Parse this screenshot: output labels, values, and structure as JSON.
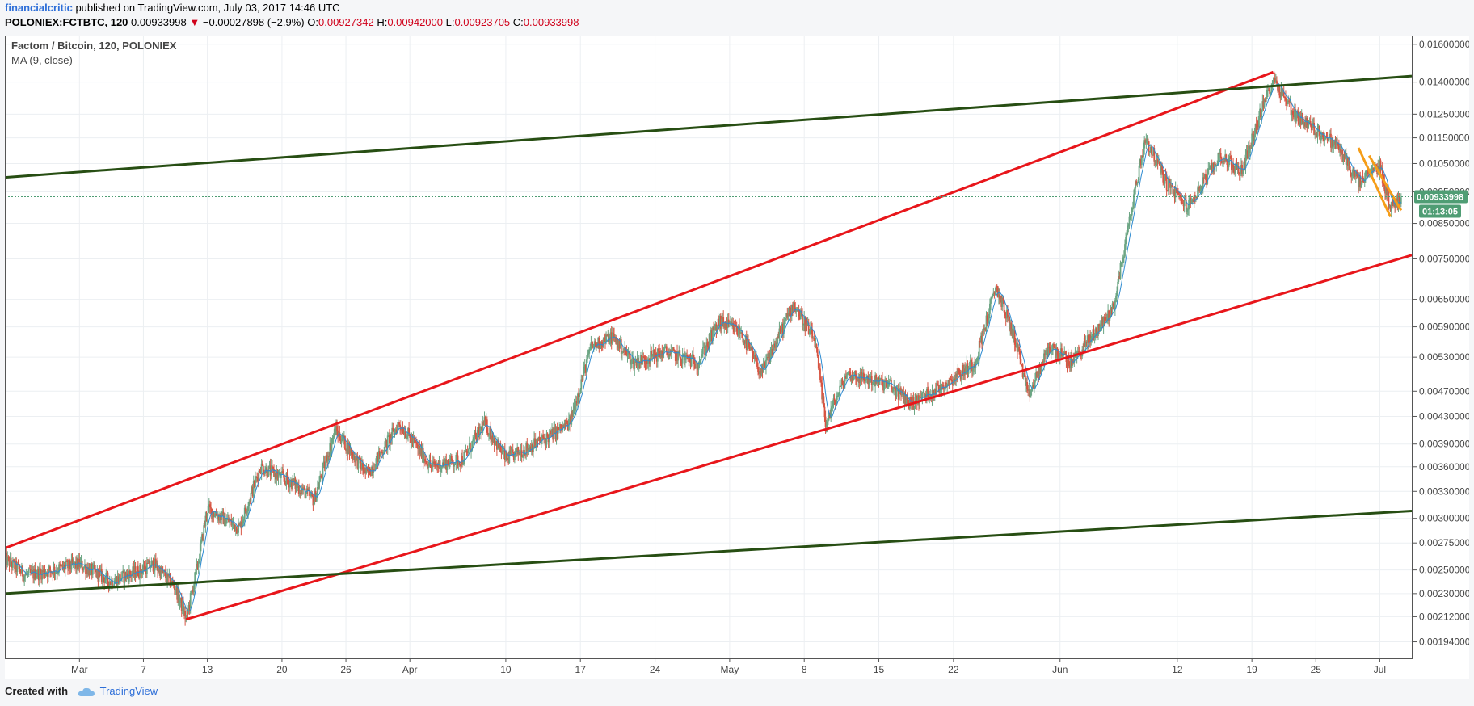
{
  "header": {
    "author": "financialcritic",
    "published_text": "published on TradingView.com, July 03, 2017 14:46 UTC",
    "symbol": "POLONIEX:FCTBTC, 120",
    "last": "0.00933998",
    "change": "−0.00027898 (−2.9%)",
    "change_icon": "triangle-down-icon",
    "o_label": "O:",
    "o_value": "0.00927342",
    "h_label": "H:",
    "h_value": "0.00942000",
    "l_label": "L:",
    "l_value": "0.00923705",
    "c_label": "C:",
    "c_value": "0.00933998"
  },
  "legend": {
    "title": "Factom / Bitcoin, 120, POLONIEX",
    "indicator": "MA (9, close)"
  },
  "price_badge": {
    "value": "0.00933998",
    "countdown": "01:13:05",
    "color": "#4f9d74"
  },
  "footer": {
    "created_with": "Created with",
    "brand": "TradingView"
  },
  "colors": {
    "candle_up": "#6ba583",
    "candle_down": "#d75442",
    "ma": "#2e8bd1",
    "red_channel": "#e8161b",
    "green_channel": "#274e13",
    "orange": "#f59d18"
  },
  "chart_data": {
    "type": "candlestick",
    "scale": "log",
    "ylim": [
      0.00183,
      0.0165
    ],
    "xlim": [
      "2017-02-22",
      "2017-07-04"
    ],
    "y_ticks": [
      "0.01600000",
      "0.01400000",
      "0.01250000",
      "0.01150000",
      "0.01050000",
      "0.00950000",
      "0.00850000",
      "0.00750000",
      "0.00650000",
      "0.00590000",
      "0.00530000",
      "0.00470000",
      "0.00430000",
      "0.00390000",
      "0.00360000",
      "0.00330000",
      "0.00300000",
      "0.00275000",
      "0.00250000",
      "0.00230000",
      "0.00212000",
      "0.00194000"
    ],
    "x_ticks": [
      {
        "label": "Mar",
        "date": "2017-03-01"
      },
      {
        "label": "7",
        "date": "2017-03-07"
      },
      {
        "label": "13",
        "date": "2017-03-13"
      },
      {
        "label": "20",
        "date": "2017-03-20"
      },
      {
        "label": "26",
        "date": "2017-03-26"
      },
      {
        "label": "Apr",
        "date": "2017-04-01"
      },
      {
        "label": "10",
        "date": "2017-04-10"
      },
      {
        "label": "17",
        "date": "2017-04-17"
      },
      {
        "label": "24",
        "date": "2017-04-24"
      },
      {
        "label": "May",
        "date": "2017-05-01"
      },
      {
        "label": "8",
        "date": "2017-05-08"
      },
      {
        "label": "15",
        "date": "2017-05-15"
      },
      {
        "label": "22",
        "date": "2017-05-22"
      },
      {
        "label": "Jun",
        "date": "2017-06-01"
      },
      {
        "label": "12",
        "date": "2017-06-12"
      },
      {
        "label": "19",
        "date": "2017-06-19"
      },
      {
        "label": "25",
        "date": "2017-06-25"
      },
      {
        "label": "Jul",
        "date": "2017-07-01"
      }
    ],
    "price_keyframes": [
      [
        "2017-02-22",
        0.0026
      ],
      [
        "2017-02-24",
        0.00245
      ],
      [
        "2017-03-01",
        0.00255
      ],
      [
        "2017-03-04",
        0.0024
      ],
      [
        "2017-03-08",
        0.00255
      ],
      [
        "2017-03-10",
        0.00235
      ],
      [
        "2017-03-11",
        0.0021
      ],
      [
        "2017-03-12",
        0.0025
      ],
      [
        "2017-03-13",
        0.0031
      ],
      [
        "2017-03-16",
        0.0029
      ],
      [
        "2017-03-18",
        0.0036
      ],
      [
        "2017-03-21",
        0.0034
      ],
      [
        "2017-03-23",
        0.0032
      ],
      [
        "2017-03-25",
        0.0041
      ],
      [
        "2017-03-28",
        0.0035
      ],
      [
        "2017-03-31",
        0.0042
      ],
      [
        "2017-04-03",
        0.0036
      ],
      [
        "2017-04-06",
        0.0037
      ],
      [
        "2017-04-08",
        0.0042
      ],
      [
        "2017-04-10",
        0.0037
      ],
      [
        "2017-04-14",
        0.004
      ],
      [
        "2017-04-16",
        0.0042
      ],
      [
        "2017-04-18",
        0.0055
      ],
      [
        "2017-04-20",
        0.0057
      ],
      [
        "2017-04-22",
        0.0052
      ],
      [
        "2017-04-25",
        0.0054
      ],
      [
        "2017-04-28",
        0.0052
      ],
      [
        "2017-04-30",
        0.006
      ],
      [
        "2017-05-02",
        0.0058
      ],
      [
        "2017-05-04",
        0.005
      ],
      [
        "2017-05-07",
        0.0064
      ],
      [
        "2017-05-09",
        0.0056
      ],
      [
        "2017-05-10",
        0.0042
      ],
      [
        "2017-05-12",
        0.005
      ],
      [
        "2017-05-16",
        0.0048
      ],
      [
        "2017-05-18",
        0.0045
      ],
      [
        "2017-05-21",
        0.0048
      ],
      [
        "2017-05-24",
        0.0052
      ],
      [
        "2017-05-26",
        0.0068
      ],
      [
        "2017-05-28",
        0.0055
      ],
      [
        "2017-05-29",
        0.0046
      ],
      [
        "2017-05-31",
        0.0055
      ],
      [
        "2017-06-02",
        0.0052
      ],
      [
        "2017-06-04",
        0.0057
      ],
      [
        "2017-06-06",
        0.0063
      ],
      [
        "2017-06-08",
        0.0095
      ],
      [
        "2017-06-09",
        0.0115
      ],
      [
        "2017-06-11",
        0.0098
      ],
      [
        "2017-06-13",
        0.009
      ],
      [
        "2017-06-16",
        0.0108
      ],
      [
        "2017-06-18",
        0.0102
      ],
      [
        "2017-06-20",
        0.0128
      ],
      [
        "2017-06-21",
        0.0142
      ],
      [
        "2017-06-23",
        0.0125
      ],
      [
        "2017-06-25",
        0.0118
      ],
      [
        "2017-06-27",
        0.0112
      ],
      [
        "2017-06-29",
        0.0098
      ],
      [
        "2017-07-01",
        0.0104
      ],
      [
        "2017-07-02",
        0.009
      ],
      [
        "2017-07-03",
        0.00934
      ]
    ],
    "trendlines": [
      {
        "color": "#e8161b",
        "from": [
          "2017-02-22",
          0.0027
        ],
        "to": [
          "2017-06-21",
          0.0145
        ]
      },
      {
        "color": "#e8161b",
        "from": [
          "2017-03-11",
          0.0021
        ],
        "to": [
          "2017-07-04",
          0.0076
        ]
      },
      {
        "color": "#274e13",
        "from": [
          "2017-02-22",
          0.01
        ],
        "to": [
          "2017-07-04",
          0.0143
        ]
      },
      {
        "color": "#274e13",
        "from": [
          "2017-02-22",
          0.0023
        ],
        "to": [
          "2017-07-04",
          0.00308
        ]
      },
      {
        "color": "#f59d18",
        "from": [
          "2017-06-29",
          0.0111
        ],
        "to": [
          "2017-07-02",
          0.0087
        ]
      },
      {
        "color": "#f59d18",
        "from": [
          "2017-06-30",
          0.0108
        ],
        "to": [
          "2017-07-03",
          0.0089
        ]
      }
    ],
    "last_price": 0.00933998,
    "grid": true
  }
}
